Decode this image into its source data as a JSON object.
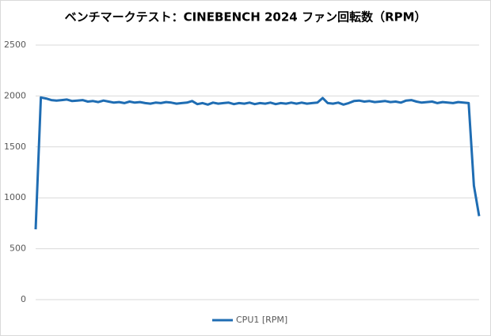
{
  "chart_data": {
    "type": "line",
    "title": "ベンチマークテスト：CINEBENCH 2024  ファン回転数（RPM）",
    "ylim": [
      0,
      2500
    ],
    "yticks": [
      0,
      500,
      1000,
      1500,
      2000,
      2500
    ],
    "grid": true,
    "legend": "bottom",
    "series": [
      {
        "name": "CPU1 [RPM]",
        "color": "#1f6db3",
        "values": [
          690,
          1985,
          1975,
          1960,
          1955,
          1960,
          1965,
          1950,
          1955,
          1960,
          1945,
          1950,
          1940,
          1955,
          1945,
          1935,
          1940,
          1930,
          1945,
          1935,
          1940,
          1930,
          1925,
          1935,
          1930,
          1940,
          1935,
          1925,
          1930,
          1935,
          1950,
          1920,
          1930,
          1915,
          1935,
          1925,
          1930,
          1935,
          1920,
          1930,
          1925,
          1935,
          1920,
          1930,
          1925,
          1935,
          1920,
          1930,
          1925,
          1935,
          1925,
          1935,
          1925,
          1930,
          1935,
          1980,
          1930,
          1925,
          1935,
          1915,
          1930,
          1950,
          1955,
          1945,
          1950,
          1940,
          1945,
          1950,
          1940,
          1945,
          1935,
          1955,
          1960,
          1945,
          1935,
          1940,
          1945,
          1930,
          1940,
          1935,
          1930,
          1940,
          1935,
          1930,
          1120,
          820
        ]
      }
    ]
  }
}
